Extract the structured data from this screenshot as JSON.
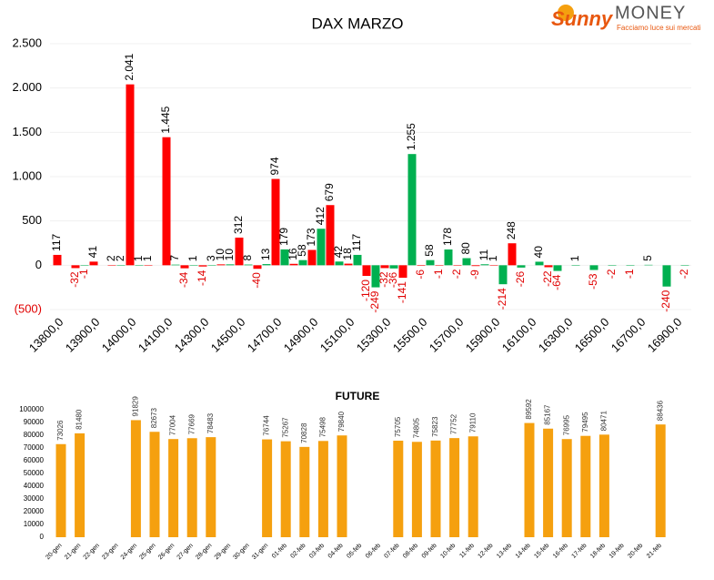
{
  "brand": {
    "name_a": "Sunny",
    "name_b": "MONEY",
    "tagline": "Facciamo luce sui mercati"
  },
  "chart_data": [
    {
      "type": "bar",
      "title": "DAX MARZO",
      "categories": [
        "13800,0",
        null,
        "13900,0",
        null,
        "14000,0",
        null,
        "14100,0",
        null,
        "14300,0",
        null,
        "14500,0",
        null,
        "14700,0",
        null,
        "14900,0",
        null,
        "15100,0",
        null,
        "15300,0",
        null,
        "15500,0",
        null,
        "15700,0",
        null,
        "15900,0",
        null,
        "16100,0",
        null,
        "16300,0",
        null,
        "16500,0",
        null,
        "16700,0",
        null,
        "16900,0"
      ],
      "series": [
        {
          "color": "#ff0000",
          "values": [
            117,
            -32,
            41,
            2,
            2041,
            1,
            1445,
            -34,
            -14,
            10,
            312,
            -40,
            974,
            16,
            173,
            679,
            18,
            -120,
            -32,
            -141,
            -6,
            -1,
            -2,
            -9,
            1,
            248,
            null,
            -22,
            null,
            null,
            null,
            null,
            null,
            null,
            null
          ],
          "value_labels": [
            "117",
            "-32",
            "41",
            "2",
            "2.041",
            "1",
            "1.445",
            "-34",
            "-14",
            "10",
            "312",
            "-40",
            "974",
            "16",
            "173",
            "679",
            "18",
            "-120",
            "-32",
            "-141",
            "-6",
            "-1",
            "-2",
            "-9",
            "1",
            "248",
            null,
            "-22",
            null,
            null,
            null,
            null,
            null,
            null,
            null
          ]
        },
        {
          "color": "#00b050",
          "values": [
            null,
            -1,
            null,
            2,
            1,
            null,
            7,
            1,
            3,
            10,
            8,
            13,
            179,
            58,
            412,
            42,
            117,
            -249,
            -36,
            1255,
            58,
            178,
            80,
            11,
            -214,
            -26,
            40,
            -64,
            1,
            -53,
            -2,
            -1,
            5,
            -240,
            -2
          ],
          "value_labels": [
            null,
            "-1",
            null,
            "2",
            "1",
            null,
            "7",
            "1",
            "3",
            "10",
            "8",
            "13",
            "179",
            "58",
            "412",
            "42",
            "117",
            "-249",
            "-36",
            "1.255",
            "58",
            "178",
            "80",
            "11",
            "-214",
            "-26",
            "40",
            "-64",
            "1",
            "-53",
            "-2",
            "-1",
            "5",
            "-240",
            "-2"
          ]
        }
      ],
      "ylim": [
        -500,
        2500
      ],
      "yticks": [
        {
          "value": -500,
          "label": "(500)"
        },
        0,
        500,
        {
          "value": 1000,
          "label": "1.000"
        },
        {
          "value": 1500,
          "label": "1.500"
        },
        {
          "value": 2000,
          "label": "2.000"
        },
        {
          "value": 2500,
          "label": "2.500"
        }
      ],
      "grid": true
    },
    {
      "type": "bar",
      "title": "FUTURE",
      "categories": [
        "20-gen",
        "21-gen",
        "22-gen",
        "23-gen",
        "24-gen",
        "25-gen",
        "26-gen",
        "27-gen",
        "28-gen",
        "29-gen",
        "30-gen",
        "31-gen",
        "01-feb",
        "02-feb",
        "03-feb",
        "04-feb",
        "05-feb",
        "06-feb",
        "07-feb",
        "08-feb",
        "09-feb",
        "10-feb",
        "11-feb",
        "12-feb",
        "13-feb",
        "14-feb",
        "15-feb",
        "16-feb",
        "17-feb",
        "18-feb",
        "19-feb",
        "20-feb",
        "21-feb"
      ],
      "values": [
        73026,
        81480,
        null,
        null,
        91829,
        82673,
        77004,
        77669,
        78483,
        null,
        null,
        76744,
        75267,
        70828,
        75498,
        79840,
        null,
        null,
        75705,
        74805,
        75823,
        77752,
        79110,
        null,
        null,
        89592,
        85167,
        76995,
        79495,
        80471,
        null,
        null,
        88436
      ],
      "color": "#f5a00f",
      "ylim": [
        0,
        100000
      ],
      "yticks": [
        0,
        10000,
        20000,
        30000,
        40000,
        50000,
        60000,
        70000,
        80000,
        90000,
        100000
      ],
      "grid": false
    }
  ]
}
